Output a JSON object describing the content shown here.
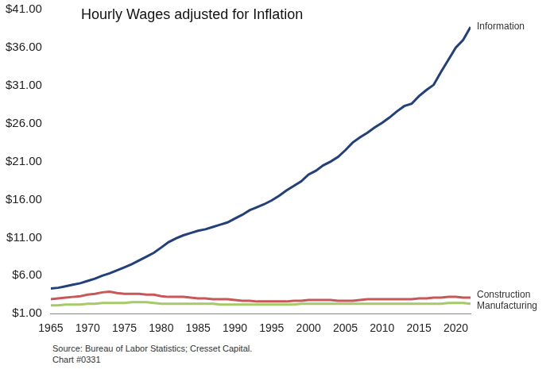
{
  "chart_data": {
    "type": "line",
    "title": "Hourly Wages adjusted for Inflation",
    "notes": [
      "Source: Bureau of Labor Statistics; Cresset Capital.",
      "Chart #0331"
    ],
    "x": [
      1965,
      1966,
      1967,
      1968,
      1969,
      1970,
      1971,
      1972,
      1973,
      1974,
      1975,
      1976,
      1977,
      1978,
      1979,
      1980,
      1981,
      1982,
      1983,
      1984,
      1985,
      1986,
      1987,
      1988,
      1989,
      1990,
      1991,
      1992,
      1993,
      1994,
      1995,
      1996,
      1997,
      1998,
      1999,
      2000,
      2001,
      2002,
      2003,
      2004,
      2005,
      2006,
      2007,
      2008,
      2009,
      2010,
      2011,
      2012,
      2013,
      2014,
      2015,
      2016,
      2017,
      2018,
      2019,
      2020,
      2021,
      2022
    ],
    "series": [
      {
        "name": "Information",
        "color": "#22407a",
        "values": [
          4.3,
          4.4,
          4.6,
          4.8,
          5.0,
          5.3,
          5.6,
          6.0,
          6.3,
          6.7,
          7.1,
          7.5,
          8.0,
          8.5,
          9.0,
          9.7,
          10.4,
          10.9,
          11.3,
          11.6,
          11.9,
          12.1,
          12.4,
          12.7,
          13.0,
          13.5,
          14.0,
          14.6,
          15.0,
          15.4,
          15.9,
          16.5,
          17.2,
          17.8,
          18.4,
          19.3,
          19.8,
          20.5,
          21.0,
          21.6,
          22.5,
          23.5,
          24.2,
          24.8,
          25.5,
          26.1,
          26.8,
          27.6,
          28.3,
          28.6,
          29.6,
          30.4,
          31.1,
          32.8,
          34.4,
          36.0,
          37.0,
          38.7
        ]
      },
      {
        "name": "Construction",
        "color": "#c9575a",
        "values": [
          2.9,
          3.0,
          3.1,
          3.2,
          3.3,
          3.5,
          3.6,
          3.8,
          3.9,
          3.7,
          3.6,
          3.6,
          3.6,
          3.5,
          3.5,
          3.3,
          3.2,
          3.2,
          3.2,
          3.1,
          3.0,
          3.0,
          2.9,
          2.9,
          2.9,
          2.8,
          2.7,
          2.7,
          2.6,
          2.6,
          2.6,
          2.6,
          2.6,
          2.7,
          2.7,
          2.8,
          2.8,
          2.8,
          2.8,
          2.7,
          2.7,
          2.7,
          2.8,
          2.9,
          2.9,
          2.9,
          2.9,
          2.9,
          2.9,
          2.9,
          3.0,
          3.0,
          3.1,
          3.1,
          3.2,
          3.2,
          3.1,
          3.1
        ]
      },
      {
        "name": "Manufacturing",
        "color": "#a6c96a",
        "values": [
          2.1,
          2.1,
          2.2,
          2.2,
          2.2,
          2.3,
          2.3,
          2.4,
          2.4,
          2.4,
          2.4,
          2.5,
          2.5,
          2.5,
          2.4,
          2.3,
          2.3,
          2.3,
          2.3,
          2.3,
          2.3,
          2.3,
          2.3,
          2.2,
          2.2,
          2.2,
          2.2,
          2.2,
          2.2,
          2.2,
          2.2,
          2.2,
          2.2,
          2.2,
          2.3,
          2.3,
          2.3,
          2.3,
          2.3,
          2.3,
          2.3,
          2.3,
          2.3,
          2.3,
          2.3,
          2.3,
          2.3,
          2.3,
          2.3,
          2.3,
          2.3,
          2.3,
          2.3,
          2.3,
          2.4,
          2.4,
          2.4,
          2.3
        ]
      }
    ],
    "xlim": [
      1965,
      2022
    ],
    "xticks": [
      1965,
      1970,
      1975,
      1980,
      1985,
      1990,
      1995,
      2000,
      2005,
      2010,
      2015,
      2020
    ],
    "ylim": [
      1,
      41
    ],
    "yticks": [
      {
        "value": 1,
        "label": "$1.00"
      },
      {
        "value": 6,
        "label": "$6.00"
      },
      {
        "value": 11,
        "label": "$11.00"
      },
      {
        "value": 16,
        "label": "$16.00"
      },
      {
        "value": 21,
        "label": "$21.00"
      },
      {
        "value": 26,
        "label": "$26.00"
      },
      {
        "value": 31,
        "label": "$31.00"
      },
      {
        "value": 36,
        "label": "$36.00"
      },
      {
        "value": 41,
        "label": "$41.00"
      }
    ],
    "grid": false
  }
}
